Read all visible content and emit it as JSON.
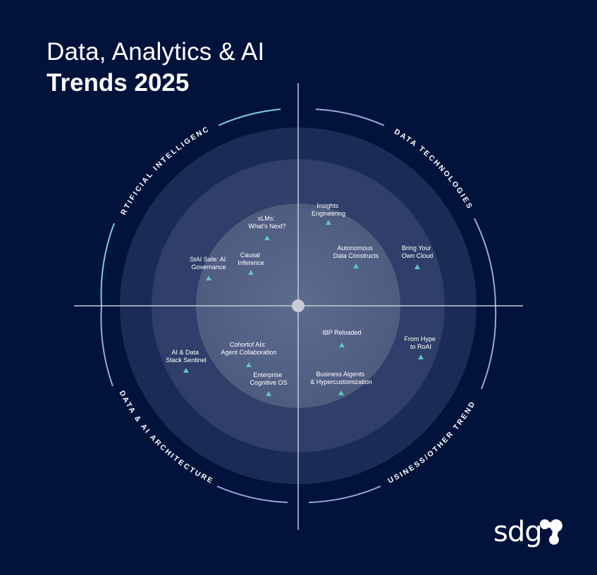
{
  "title": {
    "line1": "Data, Analytics & AI",
    "line2": "Trends 2025"
  },
  "quadrants": [
    {
      "name": "ARTIFICIAL INTELLIGENCE"
    },
    {
      "name": "DATA TECHNOLOGIES"
    },
    {
      "name": "DATA & AI ARCHITECTURE"
    },
    {
      "name": "BUSINESS/OTHER TRENDS"
    }
  ],
  "trends": [
    {
      "lines": [
        "xLMs:",
        "What’s Next?"
      ]
    },
    {
      "lines": [
        "Causal",
        "Inference"
      ]
    },
    {
      "lines": [
        "StAI Safe: AI",
        "Governance"
      ]
    },
    {
      "lines": [
        "Insights",
        "Engineering"
      ]
    },
    {
      "lines": [
        "Autonomous",
        "Data Constructs"
      ]
    },
    {
      "lines": [
        "Bring Your",
        "Own Cloud"
      ]
    },
    {
      "lines": [
        "AI & Data",
        "Stack Sentinel"
      ]
    },
    {
      "lines": [
        "Cohortof AIs:",
        "Agent Collaboration"
      ]
    },
    {
      "lines": [
        "Enterprise",
        "Cognitive OS"
      ]
    },
    {
      "lines": [
        "IBP Reloaded"
      ]
    },
    {
      "lines": [
        "From Hype",
        "to RoAI"
      ]
    },
    {
      "lines": [
        "Business Algents",
        "& Hypercustomization"
      ]
    }
  ],
  "logo": {
    "text": "sdg"
  },
  "colors": {
    "background": "#02133b",
    "marker": "#5fc4c4",
    "arc_ai": "#7fc8dc",
    "arc_data_tech": "#9aa6da"
  }
}
